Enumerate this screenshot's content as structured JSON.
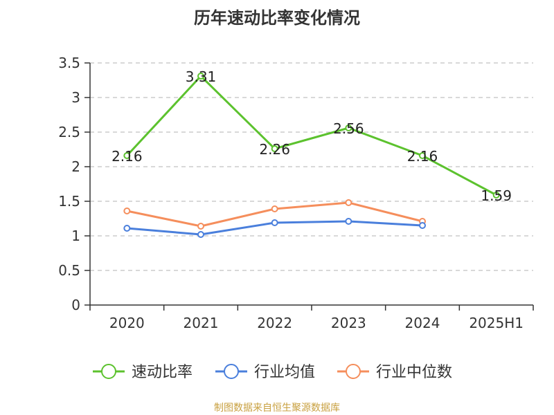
{
  "title": "历年速动比率变化情况",
  "footer": "制图数据来自恒生聚源数据库",
  "chart_data": {
    "type": "line",
    "categories": [
      "2020",
      "2021",
      "2022",
      "2023",
      "2024",
      "2025H1"
    ],
    "ylim": [
      0,
      3.5
    ],
    "yticks": [
      "0",
      "0.5",
      "1",
      "1.5",
      "2",
      "2.5",
      "3",
      "3.5"
    ],
    "grid": "horizontal dashed",
    "legend": "bottom",
    "series": [
      {
        "name": "速动比率",
        "color": "#5cc22e",
        "values": [
          2.16,
          3.31,
          2.26,
          2.56,
          2.16,
          1.59
        ],
        "labels": [
          "2.16",
          "3.31",
          "2.26",
          "2.56",
          "2.16",
          "1.59"
        ]
      },
      {
        "name": "行业均值",
        "color": "#4a7fdc",
        "values": [
          1.11,
          1.02,
          1.19,
          1.21,
          1.15,
          null
        ]
      },
      {
        "name": "行业中位数",
        "color": "#f58e5c",
        "values": [
          1.36,
          1.14,
          1.39,
          1.48,
          1.21,
          null
        ]
      }
    ]
  }
}
